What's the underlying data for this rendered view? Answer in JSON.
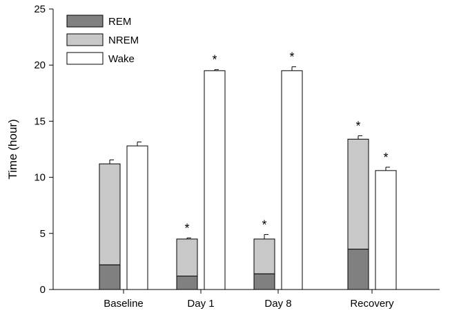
{
  "chart_data": {
    "type": "bar",
    "ylabel": "Time (hour)",
    "xlabel": "",
    "ylim": [
      0,
      25
    ],
    "yticks": [
      0,
      5,
      10,
      15,
      20,
      25
    ],
    "categories": [
      "Baseline",
      "Day 1",
      "Day 8",
      "Recovery"
    ],
    "series": [
      {
        "name": "REM",
        "stack": "sleep",
        "color": "#808080",
        "values": [
          2.2,
          1.2,
          1.4,
          3.6
        ]
      },
      {
        "name": "NREM",
        "stack": "sleep",
        "color": "#c8c8c8",
        "values": [
          9.0,
          3.3,
          3.1,
          9.8
        ]
      },
      {
        "name": "Wake",
        "stack": "wake",
        "color": "#ffffff",
        "values": [
          12.8,
          19.5,
          19.5,
          10.6
        ]
      }
    ],
    "error_bars": {
      "sleep": [
        0.35,
        0.1,
        0.4,
        0.3
      ],
      "wake": [
        0.35,
        0.1,
        0.35,
        0.3
      ]
    },
    "significance": {
      "symbol": "*",
      "sleep": [
        false,
        true,
        true,
        true
      ],
      "wake": [
        false,
        true,
        true,
        true
      ]
    },
    "legend": {
      "position": "top-left",
      "entries": [
        {
          "label": "REM",
          "color": "#808080"
        },
        {
          "label": "NREM",
          "color": "#c8c8c8"
        },
        {
          "label": "Wake",
          "color": "#ffffff"
        }
      ]
    },
    "grid": false
  }
}
